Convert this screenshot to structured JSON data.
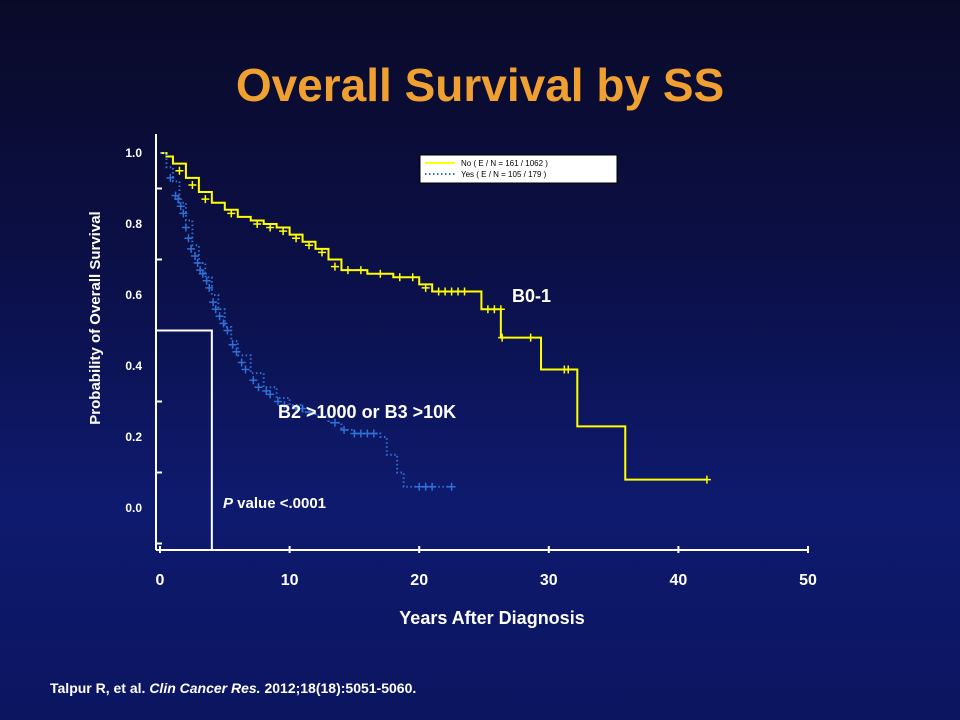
{
  "slide": {
    "title": "Overall Survival by SS",
    "title_color": "#f0a030",
    "citation_authors": "Talpur R, et al. ",
    "citation_journal": "Clin Cancer Res.",
    "citation_rest": " 2012;18(18):5051-5060."
  },
  "colors": {
    "background": "#0b1155",
    "axis": "#ffffff",
    "series_no": "#ffff00",
    "series_yes": "#2f6fd6"
  },
  "chart_data": {
    "type": "line",
    "xlabel": "Years After Diagnosis",
    "ylabel": "Probability of Overall Survival",
    "xlim": [
      0,
      50
    ],
    "ylim": [
      -0.1,
      1.05
    ],
    "x_ticks": [
      0,
      10,
      20,
      30,
      40,
      50
    ],
    "y_ticks": [
      0.0,
      0.2,
      0.4,
      0.6,
      0.8,
      1.0
    ],
    "x_tick_labels": [
      "0",
      "10",
      "20",
      "30",
      "40",
      "50"
    ],
    "y_tick_labels": [
      "0.0",
      "0.2",
      "0.4",
      "0.6",
      "0.8",
      "1.0"
    ],
    "legend_position": "top-right",
    "series": [
      {
        "name": "No  ( E / N = 161 / 1062 )",
        "style": "solid",
        "steps": [
          [
            0,
            1.0
          ],
          [
            0.5,
            0.99
          ],
          [
            1,
            0.97
          ],
          [
            2,
            0.93
          ],
          [
            3,
            0.89
          ],
          [
            4,
            0.86
          ],
          [
            5,
            0.84
          ],
          [
            6,
            0.82
          ],
          [
            7,
            0.81
          ],
          [
            8,
            0.8
          ],
          [
            9,
            0.79
          ],
          [
            10,
            0.77
          ],
          [
            11,
            0.75
          ],
          [
            12,
            0.73
          ],
          [
            13,
            0.7
          ],
          [
            14,
            0.67
          ],
          [
            16,
            0.66
          ],
          [
            18,
            0.65
          ],
          [
            20,
            0.63
          ],
          [
            21,
            0.61
          ],
          [
            24,
            0.61
          ],
          [
            24.8,
            0.56
          ],
          [
            26.3,
            0.48
          ],
          [
            29.4,
            0.39
          ],
          [
            32.2,
            0.23
          ],
          [
            35.9,
            0.08
          ],
          [
            42.2,
            0.08
          ]
        ],
        "censored": [
          [
            1.5,
            0.95
          ],
          [
            2.5,
            0.91
          ],
          [
            3.5,
            0.87
          ],
          [
            5.5,
            0.83
          ],
          [
            7.5,
            0.8
          ],
          [
            8.5,
            0.79
          ],
          [
            9.5,
            0.78
          ],
          [
            10.5,
            0.76
          ],
          [
            11.5,
            0.74
          ],
          [
            12.5,
            0.72
          ],
          [
            13.5,
            0.68
          ],
          [
            14.5,
            0.67
          ],
          [
            15.5,
            0.67
          ],
          [
            17,
            0.66
          ],
          [
            18.5,
            0.65
          ],
          [
            19.5,
            0.65
          ],
          [
            20.5,
            0.62
          ],
          [
            21.5,
            0.61
          ],
          [
            22,
            0.61
          ],
          [
            22.5,
            0.61
          ],
          [
            23,
            0.61
          ],
          [
            23.5,
            0.61
          ],
          [
            25.3,
            0.56
          ],
          [
            25.8,
            0.56
          ],
          [
            26.3,
            0.56
          ],
          [
            26.4,
            0.48
          ],
          [
            28.6,
            0.48
          ],
          [
            31.2,
            0.39
          ],
          [
            31.5,
            0.39
          ],
          [
            42.2,
            0.08
          ]
        ]
      },
      {
        "name": "Yes  ( E / N = 105 / 179 )",
        "style": "dotted",
        "steps": [
          [
            0,
            1.0
          ],
          [
            0.5,
            0.96
          ],
          [
            1,
            0.92
          ],
          [
            1.5,
            0.86
          ],
          [
            2,
            0.81
          ],
          [
            2.5,
            0.74
          ],
          [
            3,
            0.69
          ],
          [
            3.5,
            0.65
          ],
          [
            4,
            0.6
          ],
          [
            4.5,
            0.56
          ],
          [
            5,
            0.51
          ],
          [
            5.5,
            0.47
          ],
          [
            6,
            0.43
          ],
          [
            7,
            0.38
          ],
          [
            8,
            0.34
          ],
          [
            9,
            0.31
          ],
          [
            10,
            0.29
          ],
          [
            11,
            0.27
          ],
          [
            12,
            0.26
          ],
          [
            13,
            0.24
          ],
          [
            14,
            0.22
          ],
          [
            15,
            0.21
          ],
          [
            17,
            0.2
          ],
          [
            17.5,
            0.15
          ],
          [
            18.3,
            0.1
          ],
          [
            18.8,
            0.06
          ],
          [
            22.5,
            0.06
          ]
        ],
        "censored": [
          [
            0.8,
            0.93
          ],
          [
            1.2,
            0.88
          ],
          [
            1.4,
            0.87
          ],
          [
            1.6,
            0.85
          ],
          [
            1.8,
            0.83
          ],
          [
            2,
            0.79
          ],
          [
            2.2,
            0.76
          ],
          [
            2.4,
            0.73
          ],
          [
            2.7,
            0.71
          ],
          [
            2.9,
            0.69
          ],
          [
            3.1,
            0.67
          ],
          [
            3.3,
            0.66
          ],
          [
            3.6,
            0.64
          ],
          [
            3.8,
            0.62
          ],
          [
            4.1,
            0.58
          ],
          [
            4.3,
            0.56
          ],
          [
            4.6,
            0.54
          ],
          [
            4.9,
            0.52
          ],
          [
            5.2,
            0.5
          ],
          [
            5.6,
            0.46
          ],
          [
            5.9,
            0.44
          ],
          [
            6.3,
            0.41
          ],
          [
            6.6,
            0.39
          ],
          [
            7.2,
            0.36
          ],
          [
            7.6,
            0.34
          ],
          [
            8.2,
            0.33
          ],
          [
            8.5,
            0.32
          ],
          [
            9.1,
            0.3
          ],
          [
            9.6,
            0.29
          ],
          [
            10.5,
            0.28
          ],
          [
            11,
            0.28
          ],
          [
            11.5,
            0.27
          ],
          [
            13.5,
            0.24
          ],
          [
            14.2,
            0.22
          ],
          [
            15,
            0.21
          ],
          [
            15.5,
            0.21
          ],
          [
            16,
            0.21
          ],
          [
            16.5,
            0.21
          ],
          [
            20,
            0.06
          ],
          [
            20.5,
            0.06
          ],
          [
            21,
            0.06
          ],
          [
            22.5,
            0.06
          ]
        ]
      }
    ],
    "annotations": {
      "b01_label": "B0-1",
      "b23_label": "B2 >1000 or B3 >10K",
      "p_italic": "P",
      "p_rest": " value <.0001"
    },
    "median_marker": {
      "x": 4,
      "y": 0.5
    }
  }
}
